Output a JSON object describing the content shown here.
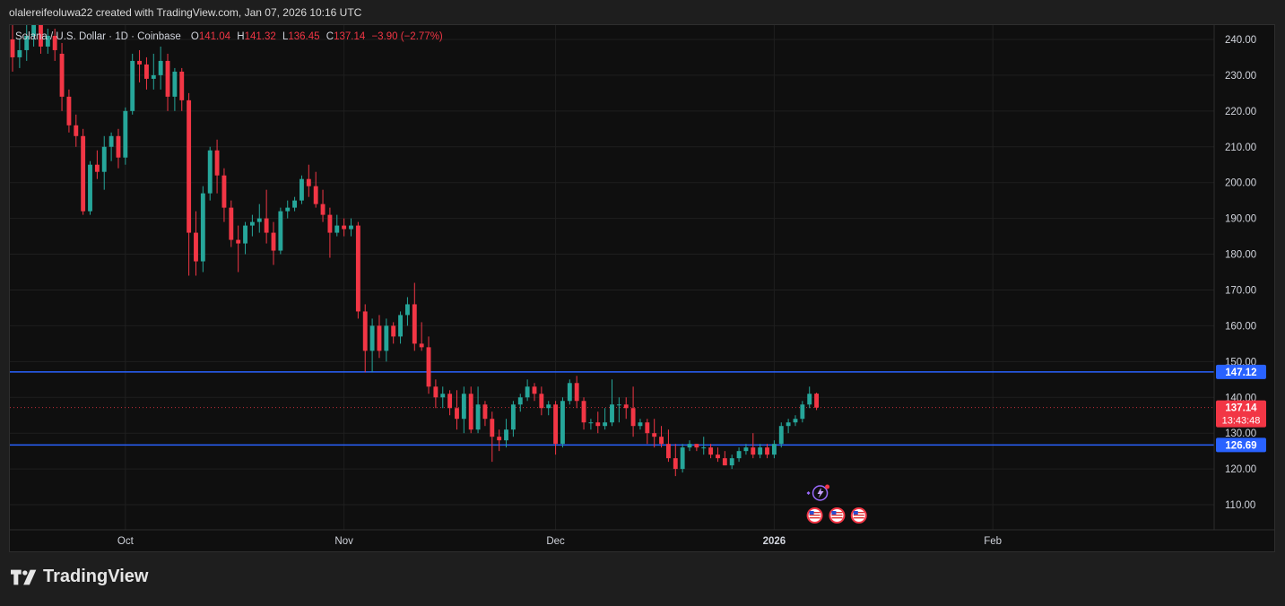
{
  "caption": "olalereifeoluwa22 created with TradingView.com, Jan 07, 2026 10:16 UTC",
  "brand": {
    "name": "TradingView",
    "logo_icon": "tradingview-logo-icon"
  },
  "legend": {
    "symbol": "Solana / U.S. Dollar · 1D · Coinbase",
    "o_label": "O",
    "o_value": "141.04",
    "h_label": "H",
    "h_value": "141.32",
    "l_label": "L",
    "l_value": "136.45",
    "c_label": "C",
    "c_value": "137.14",
    "change": "−3.90 (−2.77%)"
  },
  "colors": {
    "up": "#26a69a",
    "down": "#f23645",
    "level_line": "#2962ff",
    "grid": "#1f1f1f",
    "axis_text": "#d1d4dc",
    "price_badge": "#f23645"
  },
  "chart_data": {
    "type": "candlestick",
    "ylim": [
      103,
      244
    ],
    "y_ticks": [
      "240.00",
      "230.00",
      "220.00",
      "210.00",
      "200.00",
      "190.00",
      "180.00",
      "170.00",
      "160.00",
      "150.00",
      "140.00",
      "130.00",
      "120.00",
      "110.00"
    ],
    "y_tick_values": [
      240,
      230,
      220,
      210,
      200,
      190,
      180,
      170,
      160,
      150,
      140,
      130,
      120,
      110
    ],
    "x_ticks": [
      {
        "label": "Oct",
        "date": "2025-10-01"
      },
      {
        "label": "Nov",
        "date": "2025-11-01"
      },
      {
        "label": "Dec",
        "date": "2025-12-01"
      },
      {
        "label": "2026",
        "date": "2026-01-01",
        "bold": true
      },
      {
        "label": "Feb",
        "date": "2026-02-01"
      }
    ],
    "x_range": [
      "2025-09-15",
      "2026-03-04"
    ],
    "levels": [
      {
        "name": "resistance",
        "value": 147.12,
        "label": "147.12"
      },
      {
        "name": "support",
        "value": 126.69,
        "label": "126.69"
      }
    ],
    "last_price": {
      "value": 137.14,
      "label": "137.14",
      "countdown": "13:43:48"
    },
    "candles": [
      {
        "d": "2025-09-15",
        "o": 240,
        "h": 246,
        "l": 231,
        "c": 235
      },
      {
        "d": "2025-09-16",
        "o": 235,
        "h": 240,
        "l": 232,
        "c": 237
      },
      {
        "d": "2025-09-17",
        "o": 237,
        "h": 245,
        "l": 234,
        "c": 241
      },
      {
        "d": "2025-09-18",
        "o": 241,
        "h": 250,
        "l": 238,
        "c": 246
      },
      {
        "d": "2025-09-19",
        "o": 246,
        "h": 248,
        "l": 236,
        "c": 238
      },
      {
        "d": "2025-09-20",
        "o": 238,
        "h": 243,
        "l": 236,
        "c": 241
      },
      {
        "d": "2025-09-21",
        "o": 241,
        "h": 243,
        "l": 234,
        "c": 237
      },
      {
        "d": "2025-09-22",
        "o": 236,
        "h": 239,
        "l": 220,
        "c": 224
      },
      {
        "d": "2025-09-23",
        "o": 224,
        "h": 226,
        "l": 214,
        "c": 216
      },
      {
        "d": "2025-09-24",
        "o": 216,
        "h": 219,
        "l": 210,
        "c": 213
      },
      {
        "d": "2025-09-25",
        "o": 213,
        "h": 215,
        "l": 191,
        "c": 192
      },
      {
        "d": "2025-09-26",
        "o": 192,
        "h": 206,
        "l": 191,
        "c": 205
      },
      {
        "d": "2025-09-27",
        "o": 205,
        "h": 209,
        "l": 201,
        "c": 203
      },
      {
        "d": "2025-09-28",
        "o": 203,
        "h": 213,
        "l": 198,
        "c": 210
      },
      {
        "d": "2025-09-29",
        "o": 210,
        "h": 214,
        "l": 206,
        "c": 213
      },
      {
        "d": "2025-09-30",
        "o": 213,
        "h": 215,
        "l": 204,
        "c": 207
      },
      {
        "d": "2025-10-01",
        "o": 207,
        "h": 221,
        "l": 205,
        "c": 220
      },
      {
        "d": "2025-10-02",
        "o": 220,
        "h": 236,
        "l": 219,
        "c": 234
      },
      {
        "d": "2025-10-03",
        "o": 234,
        "h": 237,
        "l": 228,
        "c": 233
      },
      {
        "d": "2025-10-04",
        "o": 233,
        "h": 235,
        "l": 226,
        "c": 229
      },
      {
        "d": "2025-10-05",
        "o": 229,
        "h": 236,
        "l": 226,
        "c": 230
      },
      {
        "d": "2025-10-06",
        "o": 230,
        "h": 238,
        "l": 226,
        "c": 234
      },
      {
        "d": "2025-10-07",
        "o": 234,
        "h": 236,
        "l": 220,
        "c": 224
      },
      {
        "d": "2025-10-08",
        "o": 224,
        "h": 232,
        "l": 220,
        "c": 231
      },
      {
        "d": "2025-10-09",
        "o": 231,
        "h": 232,
        "l": 220,
        "c": 223
      },
      {
        "d": "2025-10-10",
        "o": 223,
        "h": 225,
        "l": 174,
        "c": 186
      },
      {
        "d": "2025-10-11",
        "o": 186,
        "h": 192,
        "l": 174,
        "c": 178
      },
      {
        "d": "2025-10-12",
        "o": 178,
        "h": 199,
        "l": 175,
        "c": 197
      },
      {
        "d": "2025-10-13",
        "o": 197,
        "h": 210,
        "l": 195,
        "c": 209
      },
      {
        "d": "2025-10-14",
        "o": 209,
        "h": 212,
        "l": 197,
        "c": 202
      },
      {
        "d": "2025-10-15",
        "o": 202,
        "h": 204,
        "l": 189,
        "c": 193
      },
      {
        "d": "2025-10-16",
        "o": 193,
        "h": 195,
        "l": 182,
        "c": 184
      },
      {
        "d": "2025-10-17",
        "o": 184,
        "h": 188,
        "l": 175,
        "c": 183
      },
      {
        "d": "2025-10-18",
        "o": 183,
        "h": 189,
        "l": 180,
        "c": 188
      },
      {
        "d": "2025-10-19",
        "o": 188,
        "h": 191,
        "l": 185,
        "c": 189
      },
      {
        "d": "2025-10-20",
        "o": 189,
        "h": 194,
        "l": 186,
        "c": 190
      },
      {
        "d": "2025-10-21",
        "o": 190,
        "h": 198,
        "l": 183,
        "c": 186
      },
      {
        "d": "2025-10-22",
        "o": 186,
        "h": 189,
        "l": 177,
        "c": 181
      },
      {
        "d": "2025-10-23",
        "o": 181,
        "h": 193,
        "l": 180,
        "c": 192
      },
      {
        "d": "2025-10-24",
        "o": 192,
        "h": 195,
        "l": 190,
        "c": 193
      },
      {
        "d": "2025-10-25",
        "o": 193,
        "h": 196,
        "l": 192,
        "c": 195
      },
      {
        "d": "2025-10-26",
        "o": 195,
        "h": 202,
        "l": 194,
        "c": 201
      },
      {
        "d": "2025-10-27",
        "o": 201,
        "h": 205,
        "l": 196,
        "c": 199
      },
      {
        "d": "2025-10-28",
        "o": 199,
        "h": 203,
        "l": 193,
        "c": 194
      },
      {
        "d": "2025-10-29",
        "o": 194,
        "h": 198,
        "l": 189,
        "c": 191
      },
      {
        "d": "2025-10-30",
        "o": 191,
        "h": 193,
        "l": 179,
        "c": 186
      },
      {
        "d": "2025-10-31",
        "o": 186,
        "h": 191,
        "l": 185,
        "c": 188
      },
      {
        "d": "2025-11-01",
        "o": 188,
        "h": 190,
        "l": 185,
        "c": 187
      },
      {
        "d": "2025-11-02",
        "o": 187,
        "h": 190,
        "l": 185,
        "c": 188
      },
      {
        "d": "2025-11-03",
        "o": 188,
        "h": 189,
        "l": 162,
        "c": 164
      },
      {
        "d": "2025-11-04",
        "o": 164,
        "h": 166,
        "l": 147,
        "c": 153
      },
      {
        "d": "2025-11-05",
        "o": 153,
        "h": 162,
        "l": 147,
        "c": 160
      },
      {
        "d": "2025-11-06",
        "o": 160,
        "h": 163,
        "l": 151,
        "c": 153
      },
      {
        "d": "2025-11-07",
        "o": 153,
        "h": 162,
        "l": 150,
        "c": 160
      },
      {
        "d": "2025-11-08",
        "o": 160,
        "h": 161,
        "l": 155,
        "c": 157
      },
      {
        "d": "2025-11-09",
        "o": 157,
        "h": 164,
        "l": 155,
        "c": 163
      },
      {
        "d": "2025-11-10",
        "o": 163,
        "h": 168,
        "l": 160,
        "c": 166
      },
      {
        "d": "2025-11-11",
        "o": 166,
        "h": 172,
        "l": 153,
        "c": 155
      },
      {
        "d": "2025-11-12",
        "o": 155,
        "h": 161,
        "l": 153,
        "c": 154
      },
      {
        "d": "2025-11-13",
        "o": 154,
        "h": 157,
        "l": 141,
        "c": 143
      },
      {
        "d": "2025-11-14",
        "o": 143,
        "h": 145,
        "l": 137,
        "c": 140
      },
      {
        "d": "2025-11-15",
        "o": 140,
        "h": 143,
        "l": 137,
        "c": 141
      },
      {
        "d": "2025-11-16",
        "o": 141,
        "h": 142,
        "l": 135,
        "c": 137
      },
      {
        "d": "2025-11-17",
        "o": 137,
        "h": 142,
        "l": 131,
        "c": 134
      },
      {
        "d": "2025-11-18",
        "o": 134,
        "h": 143,
        "l": 130,
        "c": 141
      },
      {
        "d": "2025-11-19",
        "o": 141,
        "h": 143,
        "l": 130,
        "c": 131
      },
      {
        "d": "2025-11-20",
        "o": 131,
        "h": 143,
        "l": 130,
        "c": 138
      },
      {
        "d": "2025-11-21",
        "o": 138,
        "h": 139,
        "l": 132,
        "c": 134
      },
      {
        "d": "2025-11-22",
        "o": 134,
        "h": 136,
        "l": 122,
        "c": 129
      },
      {
        "d": "2025-11-23",
        "o": 129,
        "h": 131,
        "l": 125,
        "c": 128
      },
      {
        "d": "2025-11-24",
        "o": 128,
        "h": 134,
        "l": 126,
        "c": 131
      },
      {
        "d": "2025-11-25",
        "o": 131,
        "h": 139,
        "l": 129,
        "c": 138
      },
      {
        "d": "2025-11-26",
        "o": 138,
        "h": 141,
        "l": 136,
        "c": 140
      },
      {
        "d": "2025-11-27",
        "o": 140,
        "h": 145,
        "l": 139,
        "c": 143
      },
      {
        "d": "2025-11-28",
        "o": 143,
        "h": 144,
        "l": 139,
        "c": 141
      },
      {
        "d": "2025-11-29",
        "o": 141,
        "h": 143,
        "l": 135,
        "c": 137
      },
      {
        "d": "2025-11-30",
        "o": 137,
        "h": 139,
        "l": 135,
        "c": 138
      },
      {
        "d": "2025-12-01",
        "o": 138,
        "h": 139,
        "l": 124,
        "c": 127
      },
      {
        "d": "2025-12-02",
        "o": 127,
        "h": 140,
        "l": 126,
        "c": 139
      },
      {
        "d": "2025-12-03",
        "o": 139,
        "h": 145,
        "l": 138,
        "c": 144
      },
      {
        "d": "2025-12-04",
        "o": 144,
        "h": 146,
        "l": 137,
        "c": 139
      },
      {
        "d": "2025-12-05",
        "o": 139,
        "h": 140,
        "l": 131,
        "c": 133
      },
      {
        "d": "2025-12-06",
        "o": 133,
        "h": 134,
        "l": 131,
        "c": 133
      },
      {
        "d": "2025-12-07",
        "o": 133,
        "h": 136,
        "l": 130,
        "c": 132
      },
      {
        "d": "2025-12-08",
        "o": 132,
        "h": 137,
        "l": 131,
        "c": 133
      },
      {
        "d": "2025-12-09",
        "o": 133,
        "h": 145,
        "l": 132,
        "c": 138
      },
      {
        "d": "2025-12-10",
        "o": 138,
        "h": 140,
        "l": 133,
        "c": 138
      },
      {
        "d": "2025-12-11",
        "o": 138,
        "h": 140,
        "l": 134,
        "c": 137
      },
      {
        "d": "2025-12-12",
        "o": 137,
        "h": 143,
        "l": 129,
        "c": 132
      },
      {
        "d": "2025-12-13",
        "o": 132,
        "h": 134,
        "l": 131,
        "c": 133
      },
      {
        "d": "2025-12-14",
        "o": 133,
        "h": 134,
        "l": 127,
        "c": 130
      },
      {
        "d": "2025-12-15",
        "o": 130,
        "h": 134,
        "l": 126,
        "c": 129
      },
      {
        "d": "2025-12-16",
        "o": 129,
        "h": 132,
        "l": 126,
        "c": 127
      },
      {
        "d": "2025-12-17",
        "o": 127,
        "h": 131,
        "l": 122,
        "c": 123
      },
      {
        "d": "2025-12-18",
        "o": 123,
        "h": 127,
        "l": 118,
        "c": 120
      },
      {
        "d": "2025-12-19",
        "o": 120,
        "h": 127,
        "l": 119,
        "c": 126
      },
      {
        "d": "2025-12-20",
        "o": 126,
        "h": 128,
        "l": 125,
        "c": 127
      },
      {
        "d": "2025-12-21",
        "o": 127,
        "h": 127,
        "l": 125,
        "c": 126
      },
      {
        "d": "2025-12-22",
        "o": 126,
        "h": 129,
        "l": 124,
        "c": 126
      },
      {
        "d": "2025-12-23",
        "o": 126,
        "h": 127,
        "l": 123,
        "c": 124
      },
      {
        "d": "2025-12-24",
        "o": 124,
        "h": 126,
        "l": 122,
        "c": 123
      },
      {
        "d": "2025-12-25",
        "o": 123,
        "h": 125,
        "l": 121,
        "c": 121
      },
      {
        "d": "2025-12-26",
        "o": 121,
        "h": 124,
        "l": 120,
        "c": 123
      },
      {
        "d": "2025-12-27",
        "o": 123,
        "h": 126,
        "l": 122,
        "c": 125
      },
      {
        "d": "2025-12-28",
        "o": 125,
        "h": 127,
        "l": 124,
        "c": 126
      },
      {
        "d": "2025-12-29",
        "o": 126,
        "h": 130,
        "l": 123,
        "c": 124
      },
      {
        "d": "2025-12-30",
        "o": 124,
        "h": 127,
        "l": 123,
        "c": 126
      },
      {
        "d": "2025-12-31",
        "o": 126,
        "h": 127,
        "l": 123,
        "c": 124
      },
      {
        "d": "2026-01-01",
        "o": 124,
        "h": 128,
        "l": 123,
        "c": 127
      },
      {
        "d": "2026-01-02",
        "o": 127,
        "h": 133,
        "l": 126,
        "c": 132
      },
      {
        "d": "2026-01-03",
        "o": 132,
        "h": 134,
        "l": 130,
        "c": 133
      },
      {
        "d": "2026-01-04",
        "o": 133,
        "h": 135,
        "l": 132,
        "c": 134
      },
      {
        "d": "2026-01-05",
        "o": 134,
        "h": 139,
        "l": 133,
        "c": 138
      },
      {
        "d": "2026-01-06",
        "o": 138,
        "h": 143,
        "l": 137,
        "c": 141
      },
      {
        "d": "2026-01-07",
        "o": 141.04,
        "h": 141.32,
        "l": 136.45,
        "c": 137.14
      }
    ],
    "event_markers": [
      {
        "date": "2026-01-07",
        "kind": "earnings",
        "icon": "lightning-event-icon"
      },
      {
        "date": "2026-01-07",
        "kind": "economic",
        "icon": "us-flag-event-icon"
      },
      {
        "date": "2026-01-08",
        "kind": "economic",
        "icon": "us-flag-event-icon"
      },
      {
        "date": "2026-01-10",
        "kind": "economic",
        "icon": "us-flag-event-icon"
      }
    ]
  }
}
